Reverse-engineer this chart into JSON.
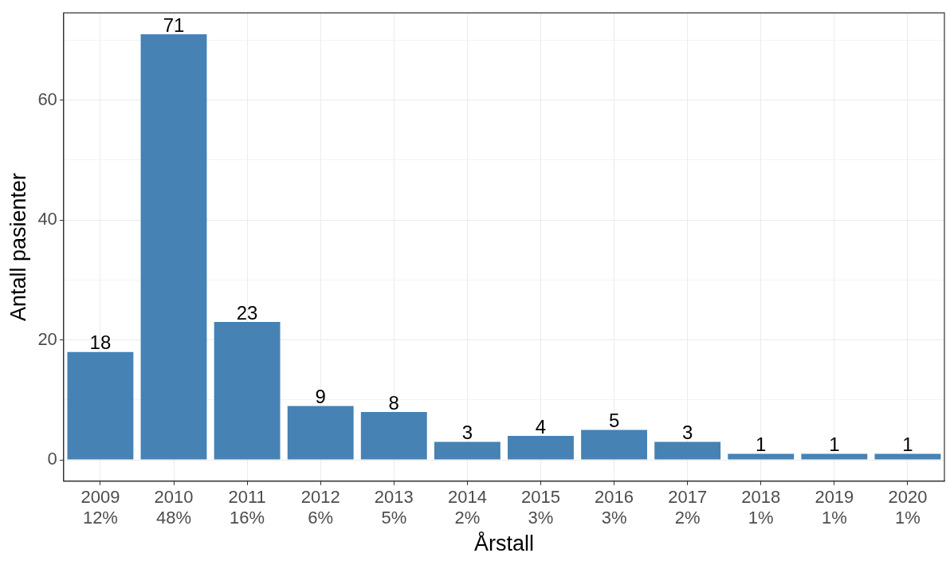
{
  "chart_data": {
    "type": "bar",
    "xlabel": "Årstall",
    "ylabel": "Antall pasienter",
    "categories": [
      "2009\n12%",
      "2010\n48%",
      "2011\n16%",
      "2012\n6%",
      "2013\n5%",
      "2014\n2%",
      "2015\n3%",
      "2016\n3%",
      "2017\n2%",
      "2018\n1%",
      "2019\n1%",
      "2020\n1%"
    ],
    "values": [
      18,
      71,
      23,
      9,
      8,
      3,
      4,
      5,
      3,
      1,
      1,
      1
    ],
    "color": "#4682b4",
    "ylim": [
      -3.55,
      74.55
    ],
    "yticks": [
      0,
      {
        "value": 10,
        "label": null
      },
      20,
      {
        "value": 30,
        "label": null
      },
      40,
      {
        "value": 50,
        "label": null
      },
      60,
      {
        "value": 70,
        "label": null
      }
    ],
    "grid": true,
    "data_labels": true,
    "legend": false
  }
}
